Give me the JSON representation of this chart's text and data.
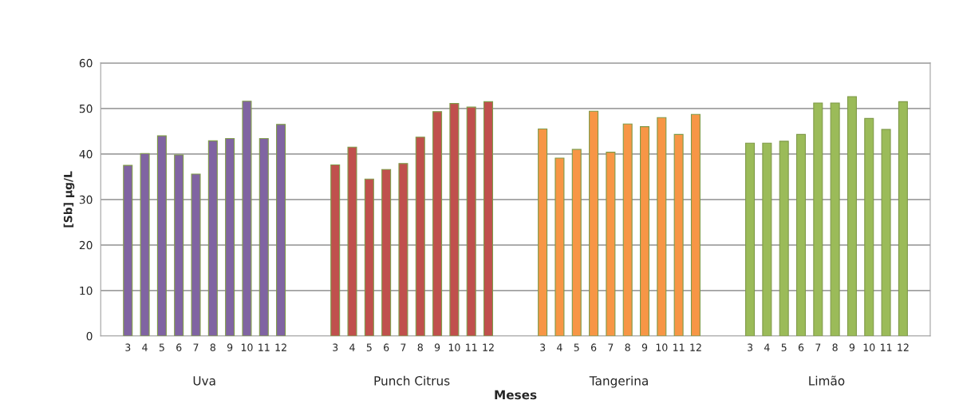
{
  "chart_data": {
    "type": "bar",
    "xlabel": "Meses",
    "ylabel": "[Sb] µg/L",
    "categories": [
      "Uva",
      "Punch Citrus",
      "Tangerina",
      "Limão"
    ],
    "series": [
      {
        "name": "3",
        "colors": [
          "#8064a2",
          "#c0504d",
          "#f79646",
          "#9bbb59"
        ],
        "values": [
          37.5,
          37.6,
          45.5,
          42.4
        ]
      },
      {
        "name": "4",
        "colors": [
          "#8064a2",
          "#c0504d",
          "#f79646",
          "#9bbb59"
        ],
        "values": [
          40.1,
          41.5,
          39.1,
          42.4
        ]
      },
      {
        "name": "5",
        "colors": [
          "#8064a2",
          "#c0504d",
          "#f79646",
          "#9bbb59"
        ],
        "values": [
          44.0,
          34.5,
          41.0,
          42.8
        ]
      },
      {
        "name": "6",
        "colors": [
          "#8064a2",
          "#c0504d",
          "#f79646",
          "#9bbb59"
        ],
        "values": [
          39.8,
          36.6,
          49.4,
          44.3
        ]
      },
      {
        "name": "7",
        "colors": [
          "#8064a2",
          "#c0504d",
          "#f79646",
          "#9bbb59"
        ],
        "values": [
          35.6,
          37.9,
          40.4,
          51.2
        ]
      },
      {
        "name": "8",
        "colors": [
          "#8064a2",
          "#c0504d",
          "#f79646",
          "#9bbb59"
        ],
        "values": [
          42.9,
          43.7,
          46.6,
          51.2
        ]
      },
      {
        "name": "9",
        "colors": [
          "#8064a2",
          "#c0504d",
          "#f79646",
          "#9bbb59"
        ],
        "values": [
          43.4,
          49.3,
          46.0,
          52.6
        ]
      },
      {
        "name": "10",
        "colors": [
          "#8064a2",
          "#c0504d",
          "#f79646",
          "#9bbb59"
        ],
        "values": [
          51.6,
          51.1,
          48.0,
          47.8
        ]
      },
      {
        "name": "11",
        "colors": [
          "#8064a2",
          "#c0504d",
          "#f79646",
          "#9bbb59"
        ],
        "values": [
          43.4,
          50.3,
          44.3,
          45.4
        ]
      },
      {
        "name": "12",
        "colors": [
          "#8064a2",
          "#c0504d",
          "#f79646",
          "#9bbb59"
        ],
        "values": [
          46.5,
          51.5,
          48.7,
          51.5
        ]
      }
    ],
    "ylim": [
      0,
      60
    ],
    "yticks": [
      0,
      10,
      20,
      30,
      40,
      50,
      60
    ],
    "grid": "y",
    "legend": false
  }
}
